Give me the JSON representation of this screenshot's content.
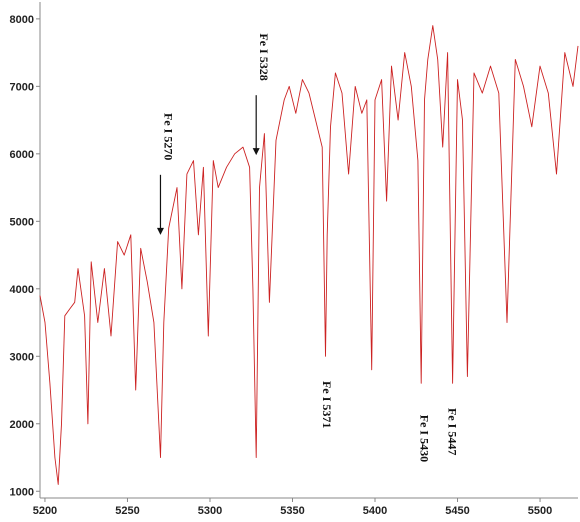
{
  "chart_data": {
    "type": "line",
    "title": "",
    "xlabel": "",
    "ylabel": "",
    "xlim": [
      5197,
      5523
    ],
    "ylim": [
      900,
      8250
    ],
    "x_ticks": [
      5200,
      5250,
      5300,
      5350,
      5400,
      5450,
      5500
    ],
    "y_ticks": [
      1000,
      2000,
      3000,
      4000,
      5000,
      6000,
      7000,
      8000
    ],
    "grid": false,
    "series": [
      {
        "color": "#cc2222",
        "x": [
          5197,
          5200,
          5203,
          5206,
          5208,
          5210,
          5212,
          5215,
          5218,
          5220,
          5224,
          5226,
          5228,
          5232,
          5236,
          5240,
          5244,
          5248,
          5252,
          5255,
          5258,
          5262,
          5266,
          5268,
          5270,
          5272,
          5275,
          5280,
          5283,
          5286,
          5290,
          5293,
          5296,
          5299,
          5302,
          5305,
          5310,
          5315,
          5320,
          5324,
          5326,
          5328,
          5330,
          5333,
          5336,
          5340,
          5345,
          5348,
          5352,
          5356,
          5360,
          5364,
          5368,
          5370,
          5371,
          5373,
          5376,
          5380,
          5384,
          5388,
          5392,
          5395,
          5398,
          5400,
          5404,
          5407,
          5410,
          5414,
          5418,
          5422,
          5426,
          5428,
          5430,
          5432,
          5435,
          5438,
          5441,
          5444,
          5447,
          5450,
          5453,
          5456,
          5460,
          5465,
          5470,
          5475,
          5480,
          5485,
          5490,
          5495,
          5500,
          5505,
          5510,
          5515,
          5520,
          5523
        ],
        "y": [
          3900,
          3500,
          2600,
          1500,
          1100,
          2000,
          3600,
          3700,
          3800,
          4300,
          3600,
          2000,
          4400,
          3500,
          4300,
          3300,
          4700,
          4500,
          4800,
          2500,
          4600,
          4100,
          3500,
          2500,
          1500,
          3500,
          4900,
          5500,
          4000,
          5700,
          5900,
          4800,
          5800,
          3300,
          5900,
          5500,
          5800,
          6000,
          6100,
          5800,
          4000,
          1500,
          5500,
          6300,
          3800,
          6200,
          6800,
          7000,
          6600,
          7100,
          6900,
          6500,
          6100,
          3000,
          4800,
          6400,
          7200,
          6900,
          5700,
          7000,
          6600,
          6800,
          2800,
          6800,
          7100,
          5300,
          7300,
          6500,
          7500,
          7000,
          5900,
          2600,
          6800,
          7400,
          7900,
          7400,
          6100,
          7500,
          2600,
          7100,
          6500,
          2700,
          7200,
          6900,
          7300,
          6900,
          3500,
          7400,
          7000,
          6400,
          7300,
          6900,
          5700,
          7500,
          7000,
          7600
        ]
      }
    ],
    "annotations": [
      {
        "text": "Fe I 5270",
        "x": 5270,
        "y": 4800,
        "arrow": true
      },
      {
        "text": "Fe I 5328",
        "x": 5328,
        "y": 5980,
        "arrow": true
      },
      {
        "text": "Fe I 5371",
        "x": 5371,
        "y": 2900,
        "arrow": false
      },
      {
        "text": "Fe I 5430",
        "x": 5430,
        "y": 2400,
        "arrow": false
      },
      {
        "text": "Fe I 5447",
        "x": 5447,
        "y": 2500,
        "arrow": false
      }
    ]
  }
}
